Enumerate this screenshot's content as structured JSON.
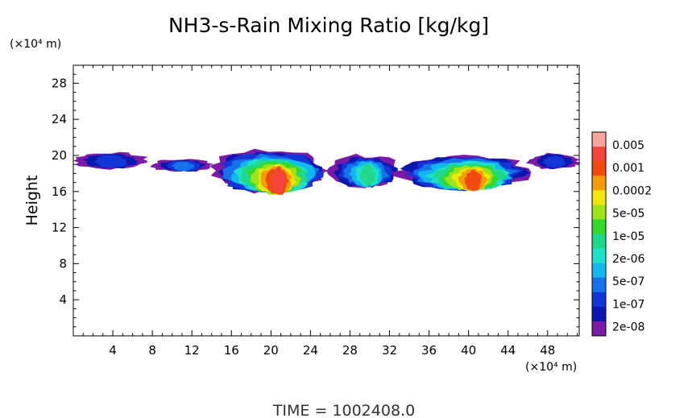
{
  "chart_data": {
    "type": "heatmap",
    "title": "NH3-s-Rain Mixing Ratio [kg/kg]",
    "ylabel": "Height",
    "y_unit": "(×10⁴ m)",
    "x_unit": "(×10⁴ m)",
    "xlim": [
      0,
      51.2
    ],
    "ylim": [
      0,
      30
    ],
    "x_ticks": [
      "4",
      "8",
      "12",
      "16",
      "20",
      "24",
      "28",
      "32",
      "36",
      "40",
      "44",
      "48"
    ],
    "y_ticks": [
      "4",
      "8",
      "12",
      "16",
      "20",
      "24",
      "28"
    ],
    "colorbar": {
      "labels": [
        "0.005",
        "0.001",
        "0.0002",
        "5e-05",
        "1e-05",
        "2e-06",
        "5e-07",
        "1e-07",
        "2e-08"
      ],
      "colors": [
        "#f6a49c",
        "#f2453b",
        "#f04a10",
        "#f59c0c",
        "#f0e60a",
        "#9ee21a",
        "#37d82c",
        "#1fd88a",
        "#1fe0c8",
        "#11b8ee",
        "#1672ea",
        "#1436d6",
        "#0a18b0",
        "#7a1ba8"
      ]
    },
    "annotation": "TIME  =  1002408.0",
    "cloud_regions": [
      {
        "x": [
          0.0,
          7.5
        ],
        "y": [
          18.5,
          20.3
        ],
        "max_level": 2
      },
      {
        "x": [
          8.0,
          14.0
        ],
        "y": [
          18.2,
          19.6
        ],
        "max_level": 3
      },
      {
        "x": [
          14.0,
          25.5
        ],
        "y": [
          16.0,
          20.6
        ],
        "max_level": 12
      },
      {
        "x": [
          26.0,
          33.0
        ],
        "y": [
          16.5,
          20.0
        ],
        "max_level": 6
      },
      {
        "x": [
          33.0,
          46.0
        ],
        "y": [
          16.3,
          20.0
        ],
        "max_level": 11
      },
      {
        "x": [
          46.0,
          51.2
        ],
        "y": [
          18.5,
          20.2
        ],
        "max_level": 2
      }
    ]
  }
}
